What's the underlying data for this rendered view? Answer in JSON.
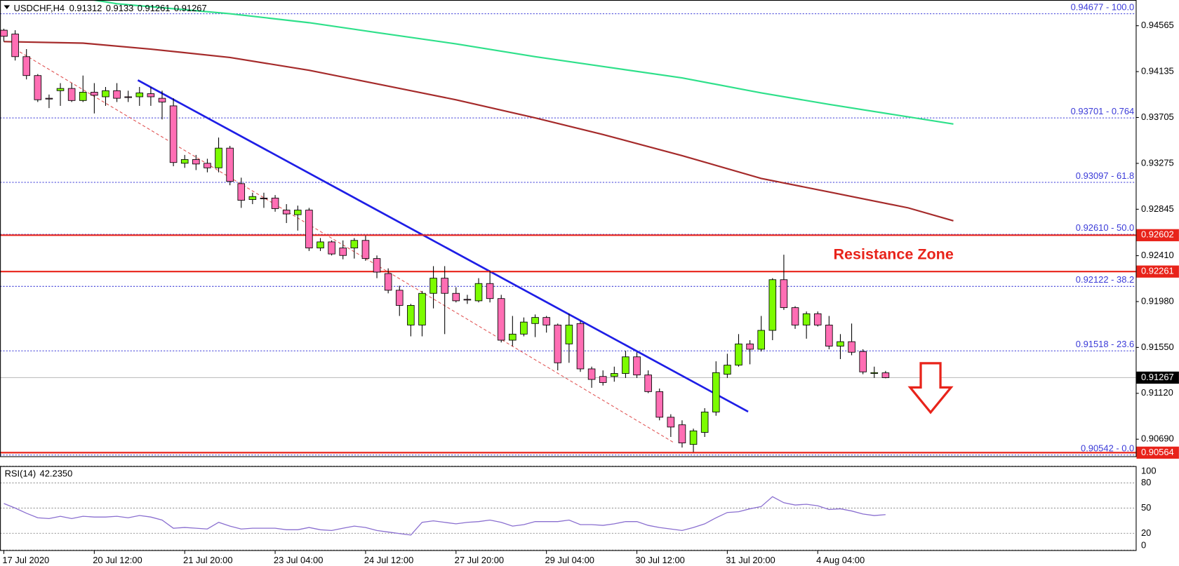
{
  "chart_data": {
    "type": "candlestick",
    "title": "USDCHF,H4",
    "categories": [
      "17 Jul 2020",
      null,
      null,
      null,
      null,
      null,
      null,
      null,
      "20 Jul 12:00",
      null,
      null,
      null,
      null,
      null,
      null,
      null,
      "21 Jul 20:00",
      null,
      null,
      null,
      null,
      null,
      null,
      null,
      "23 Jul 04:00",
      null,
      null,
      null,
      null,
      null,
      null,
      null,
      "24 Jul 12:00",
      null,
      null,
      null,
      null,
      null,
      null,
      null,
      "27 Jul 20:00",
      null,
      null,
      null,
      null,
      null,
      null,
      null,
      "29 Jul 04:00",
      null,
      null,
      null,
      null,
      null,
      null,
      null,
      "30 Jul 12:00",
      null,
      null,
      null,
      null,
      null,
      null,
      null,
      "31 Jul 20:00",
      null,
      null,
      null,
      null,
      null,
      null,
      null,
      "4 Aug 04:00",
      null,
      null,
      null,
      null,
      null,
      null
    ],
    "open": [
      0.94523,
      0.94487,
      0.94275,
      0.94098,
      0.93885,
      0.93956,
      0.93977,
      0.93864,
      0.93942,
      0.93899,
      0.93956,
      0.93899,
      0.93899,
      0.93928,
      0.93885,
      0.93814,
      0.93276,
      0.93311,
      0.93276,
      0.93233,
      0.93418,
      0.93085,
      0.92936,
      0.9295,
      0.9295,
      0.92837,
      0.92794,
      0.92837,
      0.92482,
      0.92539,
      0.92482,
      0.92482,
      0.92553,
      0.92383,
      0.92242,
      0.92086,
      0.9176,
      0.9176,
      0.92057,
      0.92199,
      0.92057,
      0.92001,
      0.91987,
      0.92149,
      0.92008,
      0.91618,
      0.91675,
      0.91774,
      0.91831,
      0.9176,
      0.91583,
      0.91774,
      0.91349,
      0.91278,
      0.91278,
      0.91306,
      0.91462,
      0.91292,
      0.91136,
      0.90896,
      0.90825,
      0.90641,
      0.90754,
      0.90945,
      0.91299,
      0.91384,
      0.91583,
      0.91533,
      0.9171,
      0.92185,
      0.91923,
      0.9176,
      0.91866,
      0.9176,
      0.91562,
      0.91604,
      0.91512,
      0.91306,
      0.91312
    ],
    "high": [
      0.94537,
      0.94523,
      0.94346,
      0.94112,
      0.9392,
      0.94027,
      0.94027,
      0.94098,
      0.94027,
      0.93991,
      0.94027,
      0.93956,
      0.93991,
      0.93991,
      0.93956,
      0.93885,
      0.93354,
      0.93354,
      0.93318,
      0.93517,
      0.93439,
      0.93141,
      0.93,
      0.93,
      0.92978,
      0.92893,
      0.92879,
      0.92858,
      0.92575,
      0.92553,
      0.92553,
      0.92575,
      0.92596,
      0.92412,
      0.92291,
      0.92128,
      0.91958,
      0.92079,
      0.92312,
      0.92312,
      0.92114,
      0.92043,
      0.92199,
      0.9227,
      0.92043,
      0.91845,
      0.91831,
      0.91859,
      0.91845,
      0.91774,
      0.91866,
      0.91795,
      0.9137,
      0.91335,
      0.9137,
      0.91519,
      0.91505,
      0.91335,
      0.91165,
      0.90924,
      0.90867,
      0.90789,
      0.90981,
      0.9142,
      0.91491,
      0.91675,
      0.91618,
      0.91845,
      0.92199,
      0.92419,
      0.91937,
      0.91887,
      0.91887,
      0.91845,
      0.91675,
      0.91774,
      0.91533,
      0.9137,
      0.9133
    ],
    "low": [
      0.94416,
      0.94239,
      0.94062,
      0.9385,
      0.93793,
      0.93814,
      0.9385,
      0.9385,
      0.93743,
      0.93814,
      0.9385,
      0.9385,
      0.93814,
      0.93814,
      0.93687,
      0.93248,
      0.93233,
      0.93212,
      0.93191,
      0.93191,
      0.9307,
      0.92858,
      0.92893,
      0.92858,
      0.92822,
      0.92716,
      0.92645,
      0.92454,
      0.92454,
      0.92412,
      0.92376,
      0.92383,
      0.92362,
      0.92199,
      0.92057,
      0.91845,
      0.91654,
      0.91654,
      0.91916,
      0.91675,
      0.91972,
      0.91958,
      0.91972,
      0.91972,
      0.91597,
      0.91562,
      0.91654,
      0.91647,
      0.91689,
      0.91335,
      0.91406,
      0.91321,
      0.91172,
      0.91193,
      0.91229,
      0.91264,
      0.91264,
      0.91122,
      0.90867,
      0.90711,
      0.90612,
      0.9057,
      0.90711,
      0.9091,
      0.91264,
      0.9137,
      0.91392,
      0.91512,
      0.91618,
      0.91902,
      0.91724,
      0.91632,
      0.91746,
      0.91533,
      0.91441,
      0.91477,
      0.91299,
      0.91264,
      0.91261
    ],
    "close": [
      0.94466,
      0.94275,
      0.94098,
      0.93871,
      0.93878,
      0.93977,
      0.93864,
      0.93942,
      0.93913,
      0.93956,
      0.93885,
      0.93892,
      0.93935,
      0.93899,
      0.9385,
      0.93283,
      0.93311,
      0.93269,
      0.93233,
      0.93418,
      0.93106,
      0.92929,
      0.92964,
      0.92943,
      0.92851,
      0.92801,
      0.92837,
      0.92482,
      0.92539,
      0.92426,
      0.92412,
      0.92553,
      0.92383,
      0.92256,
      0.92086,
      0.91944,
      0.91944,
      0.92057,
      0.92199,
      0.92057,
      0.91987,
      0.91994,
      0.92149,
      0.92008,
      0.91618,
      0.91675,
      0.91788,
      0.91831,
      0.9176,
      0.91406,
      0.9176,
      0.91349,
      0.9125,
      0.91221,
      0.91306,
      0.91462,
      0.91292,
      0.91136,
      0.90896,
      0.90804,
      0.90655,
      0.90768,
      0.90945,
      0.91314,
      0.91384,
      0.91583,
      0.91533,
      0.9171,
      0.92185,
      0.91923,
      0.9176,
      0.91866,
      0.9176,
      0.91562,
      0.91604,
      0.91505,
      0.91321,
      0.91314,
      0.91267
    ],
    "up_color": "#7cfc00",
    "down_color": "#ff6eb4",
    "ylim": [
      0.9053,
      0.94806
    ],
    "yticks": [
      0.94565,
      0.94135,
      0.93705,
      0.93275,
      0.92845,
      {
        "value": 0.9241,
        "label": "0.92410"
      },
      {
        "value": 0.9198,
        "label": "0.91980"
      },
      {
        "value": 0.9155,
        "label": "0.91550"
      },
      {
        "value": 0.9112,
        "label": "0.91120"
      },
      {
        "value": 0.9069,
        "label": "0.90690"
      }
    ],
    "moving_averages": [
      {
        "color": "#a52a2a",
        "x": [
          0,
          7,
          13,
          20,
          27,
          33,
          40,
          47,
          53,
          60,
          67,
          73,
          80,
          84
        ],
        "values": [
          0.94416,
          0.94402,
          0.94346,
          0.94268,
          0.94147,
          0.9402,
          0.93871,
          0.93701,
          0.93545,
          0.93347,
          0.93134,
          0.93007,
          0.92858,
          0.92737
        ]
      },
      {
        "color": "#2ee08a",
        "x": [
          8,
          10,
          20,
          27,
          33,
          40,
          47,
          53,
          60,
          67,
          73,
          84
        ],
        "values": [
          0.94806,
          0.94771,
          0.94678,
          0.94593,
          0.94501,
          0.94395,
          0.94275,
          0.94183,
          0.94076,
          0.93935,
          0.93828,
          0.93644
        ]
      }
    ],
    "fib_color": "#3a3ad8",
    "fib_levels": [
      {
        "value": 0.94677,
        "label": "0.94677 - 100.0"
      },
      {
        "value": 0.93701,
        "label": "0.93701 - 0.764"
      },
      {
        "value": 0.93097,
        "label": "0.93097 - 61.8"
      },
      {
        "value": 0.9261,
        "label": "0.92610 - 50.0"
      },
      {
        "value": 0.92122,
        "label": "0.92122 - 38.2"
      },
      {
        "value": 0.91518,
        "label": "0.91518 - 23.6"
      },
      {
        "value": 0.90542,
        "label": "0.90542 - 0.0"
      }
    ],
    "level_color": "#e8231a",
    "levels": [
      0.92602,
      0.92261,
      0.90564
    ],
    "annotations": [
      "Resistance Zone"
    ],
    "rsi": {
      "title": "RSI(14)",
      "color": "#8a6fd0",
      "ylim": [
        0,
        100
      ],
      "yticks": [
        100,
        80,
        50,
        20,
        0
      ],
      "values": [
        55.5,
        50.1,
        43.9,
        38.5,
        37.6,
        40.3,
        37.6,
        40.3,
        39.4,
        39.4,
        40.3,
        38.5,
        41.2,
        39.4,
        35.8,
        26.0,
        26.9,
        26.0,
        25.1,
        33.1,
        28.6,
        25.1,
        26.0,
        26.0,
        26.0,
        24.2,
        24.2,
        26.9,
        24.2,
        23.3,
        26.0,
        28.6,
        26.9,
        23.3,
        21.5,
        19.7,
        17.9,
        33.1,
        34.9,
        33.1,
        31.3,
        33.1,
        34.0,
        35.8,
        33.1,
        28.6,
        30.4,
        34.0,
        34.0,
        34.0,
        35.8,
        30.4,
        30.4,
        29.5,
        31.3,
        34.0,
        34.0,
        29.5,
        26.9,
        25.1,
        23.3,
        26.9,
        31.3,
        38.5,
        44.8,
        45.7,
        49.2,
        51.9,
        63.6,
        56.4,
        53.7,
        54.6,
        52.8,
        48.3,
        49.2,
        46.6,
        43.0,
        41.2,
        42.235
      ],
      "value_labels": [
        null,
        null,
        null,
        null,
        null,
        null,
        null,
        null,
        null,
        null,
        null,
        null,
        null,
        null,
        null,
        null,
        null,
        null,
        null,
        null,
        null,
        null,
        null,
        null,
        null,
        null,
        null,
        null,
        null,
        null,
        null,
        null,
        null,
        null,
        null,
        null,
        null,
        null,
        null,
        null,
        null,
        null,
        null,
        null,
        null,
        null,
        null,
        null,
        null,
        null,
        null,
        null,
        null,
        null,
        null,
        null,
        null,
        null,
        null,
        null,
        null,
        null,
        null,
        null,
        null,
        null,
        null,
        null,
        null,
        null,
        null,
        null,
        null,
        null,
        null,
        null,
        null,
        null,
        "42.2350"
      ]
    }
  }
}
